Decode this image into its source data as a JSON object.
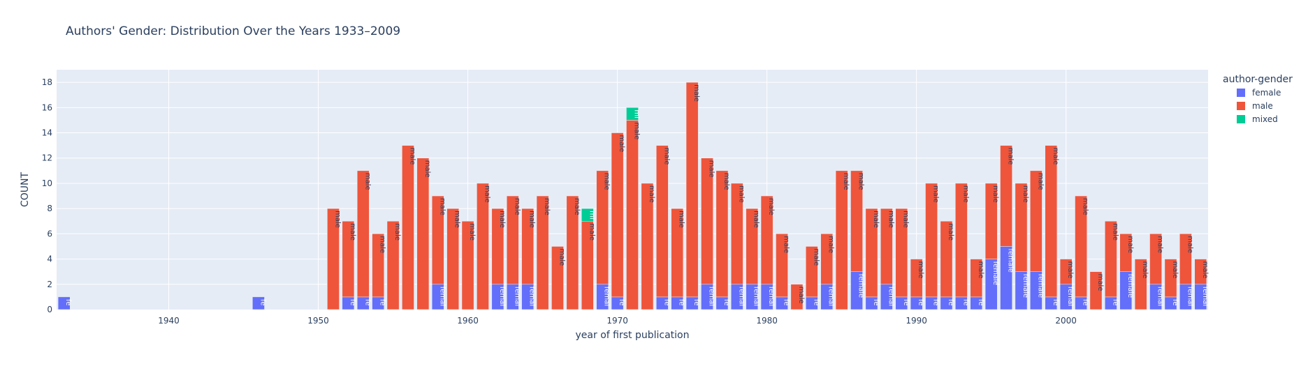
{
  "chart_data": {
    "type": "bar",
    "stacked": true,
    "title": "Authors' Gender: Distribution Over the Years 1933–2009",
    "xlabel": "year of first publication",
    "ylabel": "COUNT",
    "xlim": [
      1932.5,
      2009.5
    ],
    "ylim": [
      0,
      19
    ],
    "xticks": [
      1940,
      1950,
      1960,
      1970,
      1980,
      1990,
      2000
    ],
    "yticks": [
      0,
      2,
      4,
      6,
      8,
      10,
      12,
      14,
      16,
      18
    ],
    "legend_title": "author-gender",
    "legend_position": "right",
    "text_inside_bars": true,
    "series": [
      {
        "name": "female",
        "color": "#636efa",
        "points": [
          [
            1933,
            1
          ],
          [
            1946,
            1
          ],
          [
            1952,
            1
          ],
          [
            1953,
            1
          ],
          [
            1954,
            1
          ],
          [
            1958,
            2
          ],
          [
            1962,
            2
          ],
          [
            1963,
            2
          ],
          [
            1964,
            2
          ],
          [
            1969,
            2
          ],
          [
            1970,
            1
          ],
          [
            1973,
            1
          ],
          [
            1974,
            1
          ],
          [
            1975,
            1
          ],
          [
            1976,
            2
          ],
          [
            1977,
            1
          ],
          [
            1978,
            2
          ],
          [
            1979,
            2
          ],
          [
            1980,
            2
          ],
          [
            1981,
            1
          ],
          [
            1983,
            1
          ],
          [
            1984,
            2
          ],
          [
            1986,
            3
          ],
          [
            1987,
            1
          ],
          [
            1988,
            2
          ],
          [
            1989,
            1
          ],
          [
            1990,
            1
          ],
          [
            1991,
            1
          ],
          [
            1992,
            1
          ],
          [
            1993,
            1
          ],
          [
            1994,
            1
          ],
          [
            1995,
            4
          ],
          [
            1996,
            5
          ],
          [
            1997,
            3
          ],
          [
            1998,
            3
          ],
          [
            1999,
            1
          ],
          [
            2000,
            2
          ],
          [
            2001,
            1
          ],
          [
            2003,
            1
          ],
          [
            2004,
            3
          ],
          [
            2006,
            2
          ],
          [
            2007,
            1
          ],
          [
            2008,
            2
          ],
          [
            2009,
            2
          ]
        ]
      },
      {
        "name": "male",
        "color": "#ef553b",
        "points": [
          [
            1951,
            8
          ],
          [
            1952,
            6
          ],
          [
            1953,
            10
          ],
          [
            1954,
            5
          ],
          [
            1955,
            7
          ],
          [
            1956,
            13
          ],
          [
            1957,
            12
          ],
          [
            1958,
            7
          ],
          [
            1959,
            8
          ],
          [
            1960,
            7
          ],
          [
            1961,
            10
          ],
          [
            1962,
            6
          ],
          [
            1963,
            7
          ],
          [
            1964,
            6
          ],
          [
            1965,
            9
          ],
          [
            1966,
            5
          ],
          [
            1967,
            9
          ],
          [
            1968,
            7
          ],
          [
            1969,
            9
          ],
          [
            1970,
            13
          ],
          [
            1971,
            15
          ],
          [
            1972,
            10
          ],
          [
            1973,
            12
          ],
          [
            1974,
            7
          ],
          [
            1975,
            17
          ],
          [
            1976,
            10
          ],
          [
            1977,
            10
          ],
          [
            1978,
            8
          ],
          [
            1979,
            6
          ],
          [
            1980,
            7
          ],
          [
            1981,
            5
          ],
          [
            1982,
            2
          ],
          [
            1983,
            4
          ],
          [
            1984,
            4
          ],
          [
            1985,
            11
          ],
          [
            1986,
            8
          ],
          [
            1987,
            7
          ],
          [
            1988,
            6
          ],
          [
            1989,
            7
          ],
          [
            1990,
            3
          ],
          [
            1991,
            9
          ],
          [
            1992,
            6
          ],
          [
            1993,
            9
          ],
          [
            1994,
            3
          ],
          [
            1995,
            6
          ],
          [
            1996,
            8
          ],
          [
            1997,
            7
          ],
          [
            1998,
            8
          ],
          [
            1999,
            12
          ],
          [
            2000,
            2
          ],
          [
            2001,
            8
          ],
          [
            2002,
            3
          ],
          [
            2003,
            6
          ],
          [
            2004,
            3
          ],
          [
            2005,
            4
          ],
          [
            2006,
            4
          ],
          [
            2007,
            3
          ],
          [
            2008,
            4
          ],
          [
            2009,
            2
          ]
        ]
      },
      {
        "name": "mixed",
        "color": "#00cc96",
        "points": [
          [
            1968,
            1
          ],
          [
            1971,
            1
          ]
        ]
      }
    ]
  }
}
